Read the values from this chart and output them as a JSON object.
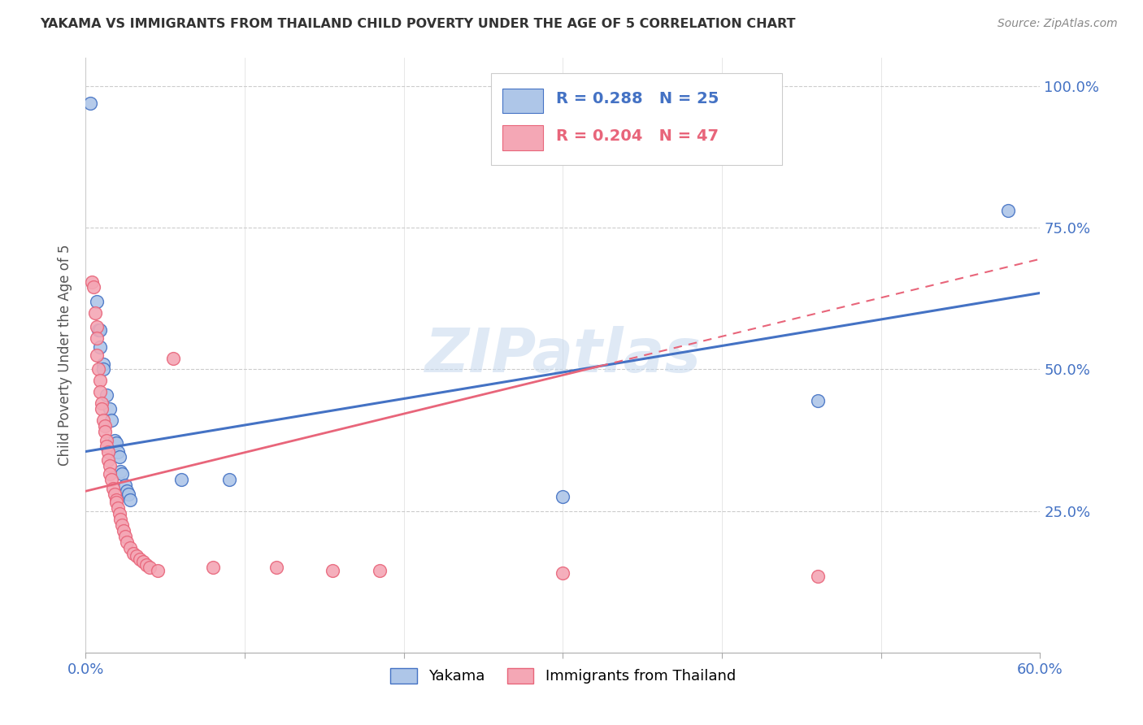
{
  "title": "YAKAMA VS IMMIGRANTS FROM THAILAND CHILD POVERTY UNDER THE AGE OF 5 CORRELATION CHART",
  "source": "Source: ZipAtlas.com",
  "ylabel": "Child Poverty Under the Age of 5",
  "r_yakama": 0.288,
  "n_yakama": 25,
  "r_thailand": 0.204,
  "n_thailand": 47,
  "xlim": [
    0.0,
    0.6
  ],
  "ylim": [
    0.0,
    1.05
  ],
  "watermark": "ZIPatlas",
  "legend_entries": [
    "Yakama",
    "Immigrants from Thailand"
  ],
  "blue_color": "#4472C4",
  "pink_color": "#E8657A",
  "blue_scatter_color": "#AEC6E8",
  "pink_scatter_color": "#F4A7B5",
  "blue_scatter": [
    [
      0.003,
      0.97
    ],
    [
      0.007,
      0.62
    ],
    [
      0.008,
      0.57
    ],
    [
      0.009,
      0.57
    ],
    [
      0.009,
      0.54
    ],
    [
      0.011,
      0.51
    ],
    [
      0.011,
      0.5
    ],
    [
      0.013,
      0.455
    ],
    [
      0.015,
      0.43
    ],
    [
      0.016,
      0.41
    ],
    [
      0.018,
      0.375
    ],
    [
      0.019,
      0.37
    ],
    [
      0.02,
      0.355
    ],
    [
      0.021,
      0.345
    ],
    [
      0.022,
      0.32
    ],
    [
      0.023,
      0.315
    ],
    [
      0.025,
      0.295
    ],
    [
      0.026,
      0.285
    ],
    [
      0.027,
      0.28
    ],
    [
      0.028,
      0.27
    ],
    [
      0.06,
      0.305
    ],
    [
      0.09,
      0.305
    ],
    [
      0.3,
      0.275
    ],
    [
      0.46,
      0.445
    ],
    [
      0.58,
      0.78
    ]
  ],
  "pink_scatter": [
    [
      0.004,
      0.655
    ],
    [
      0.005,
      0.645
    ],
    [
      0.006,
      0.6
    ],
    [
      0.007,
      0.575
    ],
    [
      0.007,
      0.555
    ],
    [
      0.007,
      0.525
    ],
    [
      0.008,
      0.5
    ],
    [
      0.009,
      0.48
    ],
    [
      0.009,
      0.46
    ],
    [
      0.01,
      0.44
    ],
    [
      0.01,
      0.43
    ],
    [
      0.011,
      0.41
    ],
    [
      0.012,
      0.4
    ],
    [
      0.012,
      0.39
    ],
    [
      0.013,
      0.375
    ],
    [
      0.013,
      0.365
    ],
    [
      0.014,
      0.355
    ],
    [
      0.014,
      0.34
    ],
    [
      0.015,
      0.33
    ],
    [
      0.015,
      0.315
    ],
    [
      0.016,
      0.305
    ],
    [
      0.017,
      0.29
    ],
    [
      0.018,
      0.28
    ],
    [
      0.019,
      0.27
    ],
    [
      0.019,
      0.265
    ],
    [
      0.02,
      0.255
    ],
    [
      0.021,
      0.245
    ],
    [
      0.022,
      0.235
    ],
    [
      0.023,
      0.225
    ],
    [
      0.024,
      0.215
    ],
    [
      0.025,
      0.205
    ],
    [
      0.026,
      0.195
    ],
    [
      0.028,
      0.185
    ],
    [
      0.03,
      0.175
    ],
    [
      0.032,
      0.17
    ],
    [
      0.034,
      0.165
    ],
    [
      0.036,
      0.16
    ],
    [
      0.038,
      0.155
    ],
    [
      0.04,
      0.15
    ],
    [
      0.045,
      0.145
    ],
    [
      0.055,
      0.52
    ],
    [
      0.08,
      0.15
    ],
    [
      0.12,
      0.15
    ],
    [
      0.155,
      0.145
    ],
    [
      0.185,
      0.145
    ],
    [
      0.3,
      0.14
    ],
    [
      0.46,
      0.135
    ]
  ],
  "blue_line": [
    0.0,
    0.355,
    0.6,
    0.635
  ],
  "pink_line": [
    0.0,
    0.285,
    0.6,
    0.695
  ]
}
